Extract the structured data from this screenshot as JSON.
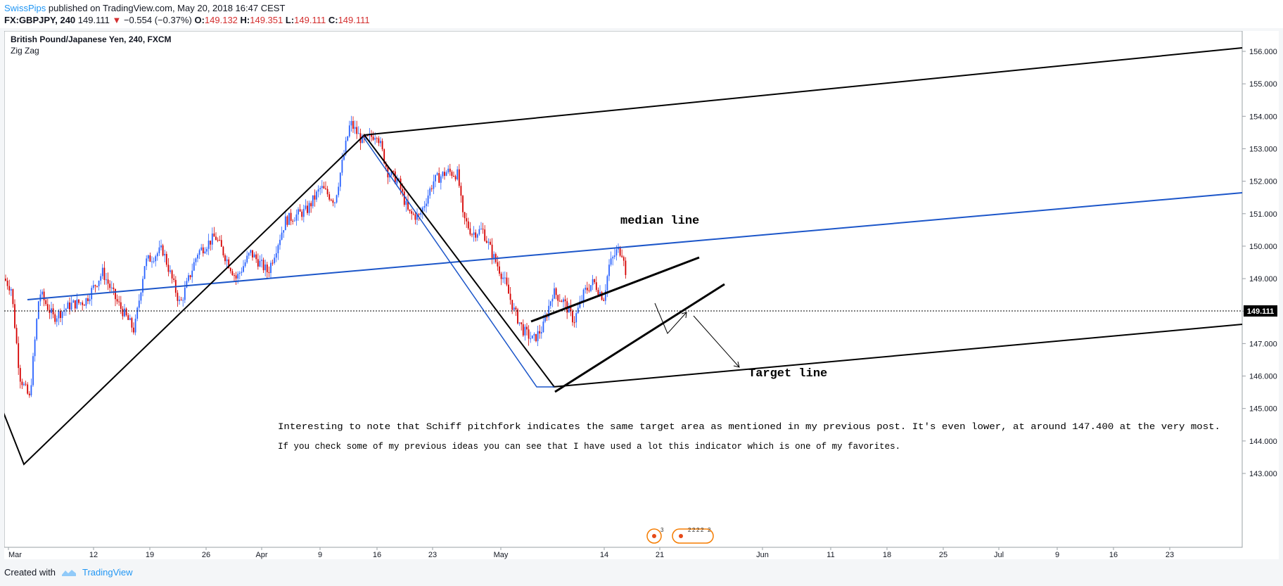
{
  "header": {
    "author": "SwissPips",
    "published_text": " published on TradingView.com, May 20, 2018 16:47 CEST",
    "symbol": "FX:GBPJPY, 240",
    "last": "149.111",
    "change": "−0.554 (−0.37%)",
    "open_label": "O:",
    "open": "149.132",
    "high_label": "H:",
    "high": "149.351",
    "low_label": "L:",
    "low": "149.111",
    "close_label": "C:",
    "close": "149.111"
  },
  "legend": {
    "title": "British Pound/Japanese Yen, 240, FXCM",
    "indicator": "Zig Zag"
  },
  "annotations": {
    "median": "median line",
    "target": "Target line",
    "note1": "Interesting to note that Schiff pitchfork indicates the same target area as mentioned in my previous post. It's even lower, at around 147.400 at the very most.",
    "note2": "If you check some of my previous ideas you can see that I have used a lot this indicator which is one of my favorites."
  },
  "events": {
    "e1": "3",
    "e2": "2",
    "e3": "2",
    "e4": "2",
    "e5": "2",
    "e6": "2"
  },
  "footer": {
    "created_with": "Created with",
    "brand": "TradingView"
  },
  "colors": {
    "up": "#2962ff",
    "down": "#d50000",
    "median": "#1c56c9",
    "pitch": "#000000"
  },
  "chart_data": {
    "type": "candlestick",
    "title": "British Pound/Japanese Yen, 240, FXCM",
    "x_ticks": [
      "Mar",
      "12",
      "19",
      "26",
      "Apr",
      "9",
      "16",
      "23",
      "May",
      "14",
      "21",
      "Jun",
      "11",
      "18",
      "25",
      "Jul",
      "9",
      "16",
      "23"
    ],
    "y_ticks": [
      "156.000",
      "155.000",
      "154.000",
      "153.000",
      "152.000",
      "151.000",
      "150.000",
      "149.000",
      "148.000",
      "147.000",
      "146.000",
      "145.000",
      "144.000",
      "143.000"
    ],
    "ylim": [
      142.8,
      156.3
    ],
    "last_price": 149.111,
    "price_path": [
      {
        "x": 0,
        "y": 149.0
      },
      {
        "x": 10,
        "y": 148.7
      },
      {
        "x": 22,
        "y": 146.0
      },
      {
        "x": 36,
        "y": 145.3
      },
      {
        "x": 50,
        "y": 148.6
      },
      {
        "x": 70,
        "y": 147.8
      },
      {
        "x": 95,
        "y": 148.2
      },
      {
        "x": 115,
        "y": 148.3
      },
      {
        "x": 140,
        "y": 149.2
      },
      {
        "x": 160,
        "y": 148.3
      },
      {
        "x": 185,
        "y": 147.4
      },
      {
        "x": 200,
        "y": 149.5
      },
      {
        "x": 225,
        "y": 149.9
      },
      {
        "x": 250,
        "y": 148.2
      },
      {
        "x": 275,
        "y": 149.8
      },
      {
        "x": 300,
        "y": 150.3
      },
      {
        "x": 330,
        "y": 149.0
      },
      {
        "x": 350,
        "y": 149.8
      },
      {
        "x": 375,
        "y": 149.2
      },
      {
        "x": 400,
        "y": 150.8
      },
      {
        "x": 430,
        "y": 151.1
      },
      {
        "x": 450,
        "y": 151.8
      },
      {
        "x": 470,
        "y": 151.4
      },
      {
        "x": 480,
        "y": 152.5
      },
      {
        "x": 492,
        "y": 153.8
      },
      {
        "x": 510,
        "y": 153.2
      },
      {
        "x": 530,
        "y": 153.5
      },
      {
        "x": 545,
        "y": 152.3
      },
      {
        "x": 560,
        "y": 152.0
      },
      {
        "x": 575,
        "y": 151.0
      },
      {
        "x": 590,
        "y": 150.9
      },
      {
        "x": 610,
        "y": 152.0
      },
      {
        "x": 630,
        "y": 152.3
      },
      {
        "x": 645,
        "y": 152.2
      },
      {
        "x": 652,
        "y": 150.9
      },
      {
        "x": 665,
        "y": 150.4
      },
      {
        "x": 680,
        "y": 150.5
      },
      {
        "x": 695,
        "y": 149.7
      },
      {
        "x": 710,
        "y": 149.0
      },
      {
        "x": 725,
        "y": 148.0
      },
      {
        "x": 738,
        "y": 147.4
      },
      {
        "x": 752,
        "y": 147.1
      },
      {
        "x": 766,
        "y": 147.5
      },
      {
        "x": 780,
        "y": 148.6
      },
      {
        "x": 795,
        "y": 148.3
      },
      {
        "x": 810,
        "y": 147.7
      },
      {
        "x": 825,
        "y": 148.6
      },
      {
        "x": 838,
        "y": 148.9
      },
      {
        "x": 852,
        "y": 148.4
      },
      {
        "x": 860,
        "y": 149.4
      },
      {
        "x": 872,
        "y": 149.9
      },
      {
        "x": 880,
        "y": 149.8
      },
      {
        "x": 885,
        "y": 149.111
      }
    ]
  }
}
